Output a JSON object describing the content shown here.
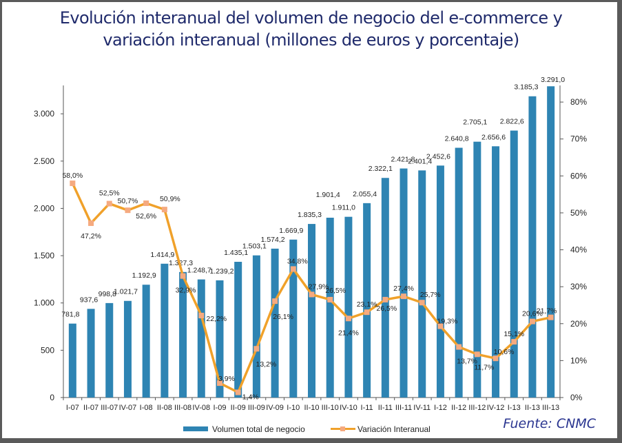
{
  "chart_data": {
    "type": "bar+line",
    "title": "Evolución interanual del volumen de negocio del e-commerce y variación interanual (millones de euros y porcentaje)",
    "title_lines": [
      "Evolución interanual del volumen de negocio del e-commerce y",
      "variación interanual (millones de euros y porcentaje)"
    ],
    "categories": [
      "I-07",
      "II-07",
      "III-07",
      "IV-07",
      "I-08",
      "II-08",
      "III-08",
      "IV-08",
      "I-09",
      "II-09",
      "III-09",
      "IV-09",
      "I-10",
      "II-10",
      "III-10",
      "IV-10",
      "I-11",
      "II-11",
      "III-11",
      "IV-11",
      "I-12",
      "II-12",
      "III-12",
      "IV-12",
      "I-13",
      "II-13",
      "III-13"
    ],
    "series": [
      {
        "name": "Volumen total de negocio",
        "type": "bar",
        "axis": "left",
        "color": "#2e84b3",
        "values": [
          781.8,
          937.6,
          998.8,
          1021.7,
          1192.9,
          1414.9,
          1327.3,
          1248.7,
          1239.2,
          1435.1,
          1503.1,
          1574.2,
          1669.9,
          1835.3,
          1901.4,
          1911.0,
          2055.4,
          2322.1,
          2421.8,
          2401.4,
          2452.6,
          2640.8,
          2705.1,
          2656.6,
          2822.6,
          3185.3,
          3291.0
        ],
        "labels": [
          "781,8",
          "937,6",
          "998,8",
          "1.021,7",
          "1.192,9",
          "1.414,9",
          "1.327,3",
          "1.248,7",
          "1.239,2",
          "1.435,1",
          "1.503,1",
          "1.574,2",
          "1.669,9",
          "1.835,3",
          "1.901,4",
          "1.911,0",
          "2.055,4",
          "2.322,1",
          "2.421,8",
          "2.401,4",
          "2.452,6",
          "2.640,8",
          "2.705,1",
          "2.656,6",
          "2.822,6",
          "3.185,3",
          "3.291,0"
        ]
      },
      {
        "name": "Variación Interanual",
        "type": "line",
        "axis": "right",
        "color": "#f0a12a",
        "marker_color": "#f5aa80",
        "values": [
          58.0,
          47.2,
          52.5,
          50.7,
          52.6,
          50.9,
          32.9,
          22.2,
          3.9,
          1.4,
          13.2,
          26.1,
          34.8,
          27.9,
          26.5,
          21.4,
          23.1,
          26.5,
          27.4,
          25.7,
          19.3,
          13.7,
          11.7,
          10.6,
          15.1,
          20.6,
          21.7
        ],
        "labels": [
          "58,0%",
          "47,2%",
          "52,5%",
          "50,7%",
          "52,6%",
          "50,9%",
          "32,9%",
          "22,2%",
          "3,9%",
          "1,4%",
          "13,2%",
          "26,1%",
          "34,8%",
          "27,9%",
          "26,5%",
          "21,4%",
          "23,1%",
          "26,5%",
          "27,4%",
          "25,7%",
          "19,3%",
          "13,7%",
          "11,7%",
          "10,6%",
          "15,1%",
          "20,6%",
          "21,7%"
        ]
      }
    ],
    "y_left": {
      "label": "",
      "range": [
        0,
        3300
      ],
      "ticks": [
        0,
        500,
        1000,
        1500,
        2000,
        2500,
        3000
      ],
      "tick_labels": [
        "0",
        "500",
        "1.000",
        "1.500",
        "2.000",
        "2.500",
        "3.000"
      ]
    },
    "y_right": {
      "label": "",
      "range": [
        0,
        84.5
      ],
      "ticks": [
        0,
        10,
        20,
        30,
        40,
        50,
        60,
        70,
        80
      ],
      "tick_labels": [
        "0%",
        "10%",
        "20%",
        "30%",
        "40%",
        "50%",
        "60%",
        "70%",
        "80%"
      ]
    },
    "xlabel": "",
    "grid": false,
    "legend": {
      "placement": "bottom",
      "entries": [
        "Volumen total de negocio",
        "Variación Interanual"
      ]
    },
    "source": "Fuente: CNMC"
  }
}
